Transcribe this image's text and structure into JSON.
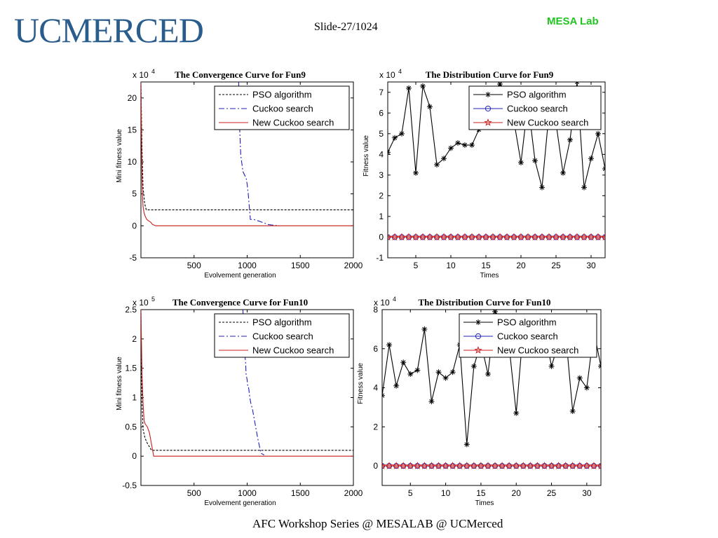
{
  "header": {
    "logo_text": "UCMERCED",
    "slide_label": "Slide-27/1024",
    "lab_name": "MESA Lab",
    "lab_color": "#22c422",
    "logo_color": "#2b5d8c"
  },
  "footer": {
    "text": "AFC Workshop Series @ MESALAB @ UCMerced"
  },
  "chart_data": [
    {
      "type": "line",
      "title": "The Convergence Curve for Fun9",
      "multiplier": "x 10",
      "exponent": "4",
      "xlabel": "Evolvement generation",
      "ylabel": "Mini fitness value",
      "xlim": [
        0,
        2000
      ],
      "ylim": [
        -5,
        22.5
      ],
      "xticks": [
        500,
        1000,
        1500,
        2000
      ],
      "yticks": [
        -5,
        0,
        5,
        10,
        15,
        20
      ],
      "legend_position": "top-right",
      "series": [
        {
          "name": "PSO algorithm",
          "color": "#000000",
          "style": "dotted",
          "marker": "",
          "x": [
            0,
            10,
            20,
            35,
            50,
            2000
          ],
          "y": [
            22.5,
            12,
            6,
            3.5,
            2.5,
            2.5
          ]
        },
        {
          "name": "Cuckoo search",
          "color": "#1f1fb4",
          "style": "dashdot",
          "marker": "",
          "x": [
            920,
            930,
            940,
            960,
            980,
            990,
            1000,
            1010,
            1020,
            1030,
            1060,
            1100,
            1150,
            1200,
            1300
          ],
          "y": [
            22.5,
            15,
            11,
            8.5,
            7.8,
            7.5,
            6.5,
            5,
            3,
            1,
            1,
            0.8,
            0.5,
            0.2,
            0
          ]
        },
        {
          "name": "New Cuckoo search",
          "color": "#c81e1e",
          "style": "solid",
          "marker": "",
          "x": [
            0,
            5,
            10,
            15,
            20,
            30,
            40,
            55,
            70,
            90,
            110,
            140,
            2000
          ],
          "y": [
            22.5,
            15,
            7,
            4.5,
            3,
            2,
            1.5,
            1,
            0.8,
            0.6,
            0.2,
            0,
            0
          ]
        }
      ]
    },
    {
      "type": "line",
      "title": "The Distribution Curve for Fun9",
      "multiplier": "x 10",
      "exponent": "4",
      "xlabel": "Times",
      "ylabel": "Fitness value",
      "xlim": [
        1,
        32
      ],
      "ylim": [
        -1,
        7.5
      ],
      "xticks": [
        5,
        10,
        15,
        20,
        25,
        30
      ],
      "yticks": [
        -1,
        0,
        1,
        2,
        3,
        4,
        5,
        6,
        7
      ],
      "legend_position": "top-right",
      "series": [
        {
          "name": "PSO algorithm",
          "color": "#000000",
          "style": "solid",
          "marker": "star",
          "x": [
            1,
            2,
            3,
            4,
            5,
            6,
            7,
            8,
            9,
            10,
            11,
            12,
            13,
            14,
            15,
            16,
            17,
            18,
            19,
            20,
            21,
            22,
            23,
            24,
            25,
            26,
            27,
            28,
            29,
            30,
            31,
            32
          ],
          "y": [
            4.1,
            4.8,
            5.0,
            7.2,
            3.1,
            7.3,
            6.3,
            3.5,
            3.8,
            4.3,
            4.55,
            4.45,
            4.45,
            5.2,
            6.0,
            6.8,
            7.4,
            6.8,
            5.6,
            3.6,
            6.5,
            3.7,
            2.4,
            6.0,
            5.5,
            3.1,
            4.7,
            7.5,
            2.4,
            3.8,
            5.0,
            3.3
          ]
        },
        {
          "name": "Cuckoo search",
          "color": "#1f1fb4",
          "style": "solid",
          "marker": "circle",
          "x": [
            1,
            2,
            3,
            4,
            5,
            6,
            7,
            8,
            9,
            10,
            11,
            12,
            13,
            14,
            15,
            16,
            17,
            18,
            19,
            20,
            21,
            22,
            23,
            24,
            25,
            26,
            27,
            28,
            29,
            30,
            31,
            32
          ],
          "y": [
            0,
            0,
            0,
            0,
            0,
            0,
            0,
            0,
            0,
            0,
            0,
            0,
            0,
            0,
            0,
            0,
            0,
            0,
            0,
            0,
            0,
            0,
            0,
            0,
            0,
            0,
            0,
            0,
            0,
            0,
            0,
            0
          ]
        },
        {
          "name": "New Cuckoo search",
          "color": "#c81e1e",
          "style": "solid",
          "marker": "pentagram",
          "x": [
            1,
            2,
            3,
            4,
            5,
            6,
            7,
            8,
            9,
            10,
            11,
            12,
            13,
            14,
            15,
            16,
            17,
            18,
            19,
            20,
            21,
            22,
            23,
            24,
            25,
            26,
            27,
            28,
            29,
            30,
            31,
            32
          ],
          "y": [
            0,
            0,
            0,
            0,
            0,
            0,
            0,
            0,
            0,
            0,
            0,
            0,
            0,
            0,
            0,
            0,
            0,
            0,
            0,
            0,
            0,
            0,
            0,
            0,
            0,
            0,
            0,
            0,
            0,
            0,
            0,
            0
          ]
        }
      ]
    },
    {
      "type": "line",
      "title": "The Convergence Curve for Fun10",
      "multiplier": "x 10",
      "exponent": "5",
      "xlabel": "Evolvement generation",
      "ylabel": "Mini fitness value",
      "xlim": [
        0,
        2000
      ],
      "ylim": [
        -0.5,
        2.5
      ],
      "xticks": [
        500,
        1000,
        1500,
        2000
      ],
      "yticks": [
        -0.5,
        0,
        0.5,
        1,
        1.5,
        2,
        2.5
      ],
      "legend_position": "top-right",
      "series": [
        {
          "name": "PSO algorithm",
          "color": "#000000",
          "style": "dotted",
          "marker": "",
          "x": [
            0,
            10,
            20,
            40,
            60,
            100,
            2000
          ],
          "y": [
            2.5,
            0.9,
            0.45,
            0.3,
            0.22,
            0.1,
            0.1
          ]
        },
        {
          "name": "Cuckoo search",
          "color": "#1f1fb4",
          "style": "dashdot",
          "marker": "",
          "x": [
            960,
            965,
            975,
            985,
            990,
            1000,
            1005,
            1010,
            1015,
            1025,
            1035,
            1050,
            1070,
            1100,
            1130,
            1160
          ],
          "y": [
            2.5,
            2.1,
            1.8,
            1.6,
            1.4,
            1.3,
            1.2,
            1.2,
            1.15,
            1.0,
            0.9,
            0.8,
            0.6,
            0.3,
            0.05,
            0.02
          ]
        },
        {
          "name": "New Cuckoo search",
          "color": "#c81e1e",
          "style": "solid",
          "marker": "",
          "x": [
            0,
            10,
            20,
            30,
            40,
            60,
            80,
            100,
            120,
            2000
          ],
          "y": [
            2.5,
            1.4,
            0.9,
            0.6,
            0.55,
            0.5,
            0.4,
            0.2,
            0,
            0
          ]
        }
      ]
    },
    {
      "type": "line",
      "title": "The Distribution Curve for Fun10",
      "multiplier": "x 10",
      "exponent": "4",
      "xlabel": "Times",
      "ylabel": "Fitness value",
      "xlim": [
        1,
        32
      ],
      "ylim": [
        -1,
        8
      ],
      "xticks": [
        5,
        10,
        15,
        20,
        25,
        30
      ],
      "yticks": [
        0,
        2,
        4,
        6,
        8
      ],
      "legend_position": "top-right",
      "series": [
        {
          "name": "PSO algorithm",
          "color": "#000000",
          "style": "solid",
          "marker": "star",
          "x": [
            1,
            2,
            3,
            4,
            5,
            6,
            7,
            8,
            9,
            10,
            11,
            12,
            13,
            14,
            15,
            16,
            17,
            18,
            19,
            20,
            21,
            22,
            23,
            24,
            25,
            26,
            27,
            28,
            29,
            30,
            31,
            32
          ],
          "y": [
            3.6,
            6.2,
            4.1,
            5.3,
            4.7,
            4.9,
            7.0,
            3.3,
            4.8,
            4.5,
            4.8,
            6.2,
            1.1,
            5.1,
            6.3,
            4.7,
            7.9,
            6.9,
            6.1,
            2.7,
            7.0,
            6.5,
            6.0,
            7.0,
            5.1,
            6.3,
            6.8,
            2.8,
            4.5,
            4.0,
            6.9,
            5.1
          ]
        },
        {
          "name": "Cuckoo search",
          "color": "#1f1fb4",
          "style": "solid",
          "marker": "circle",
          "x": [
            1,
            2,
            3,
            4,
            5,
            6,
            7,
            8,
            9,
            10,
            11,
            12,
            13,
            14,
            15,
            16,
            17,
            18,
            19,
            20,
            21,
            22,
            23,
            24,
            25,
            26,
            27,
            28,
            29,
            30,
            31,
            32
          ],
          "y": [
            0,
            0,
            0,
            0,
            0,
            0,
            0,
            0,
            0,
            0,
            0,
            0,
            0,
            0,
            0,
            0,
            0,
            0,
            0,
            0,
            0,
            0,
            0,
            0,
            0,
            0,
            0,
            0,
            0,
            0,
            0,
            0
          ]
        },
        {
          "name": "New Cuckoo search",
          "color": "#c81e1e",
          "style": "solid",
          "marker": "pentagram",
          "x": [
            1,
            2,
            3,
            4,
            5,
            6,
            7,
            8,
            9,
            10,
            11,
            12,
            13,
            14,
            15,
            16,
            17,
            18,
            19,
            20,
            21,
            22,
            23,
            24,
            25,
            26,
            27,
            28,
            29,
            30,
            31,
            32
          ],
          "y": [
            0,
            0,
            0,
            0,
            0,
            0,
            0,
            0,
            0,
            0,
            0,
            0,
            0,
            0,
            0,
            0,
            0,
            0,
            0,
            0,
            0,
            0,
            0,
            0,
            0,
            0,
            0,
            0,
            0,
            0,
            0,
            0
          ]
        }
      ]
    }
  ]
}
